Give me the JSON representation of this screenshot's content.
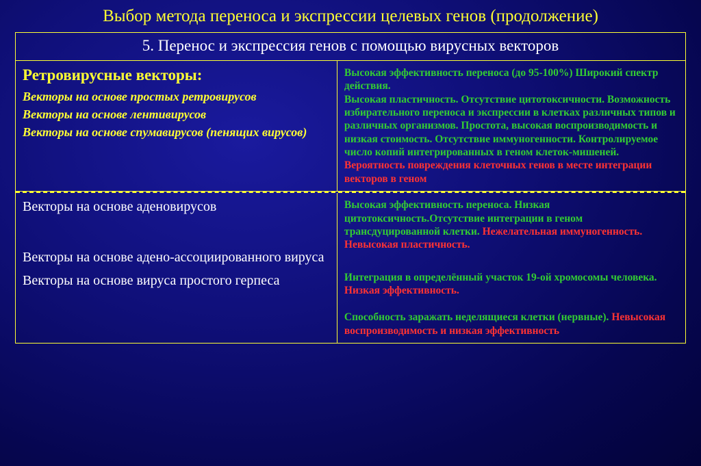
{
  "colors": {
    "accent": "#ffff33",
    "good": "#33cc33",
    "bad": "#ff3333",
    "bg_center": "#1a1a9e",
    "bg_edge": "#030338",
    "text": "#ffffff"
  },
  "title": "Выбор метода переноса и экспрессии целевых генов (продолжение)",
  "table_header": "5. Перенос и экспрессия генов с помощью вирусных векторов",
  "row1": {
    "left": {
      "heading": "Ретровирусные векторы:",
      "items": [
        "Векторы на основе простых ретровирусов",
        "Векторы на основе лентивирусов",
        "Векторы на основе спумавирусов (пенящих вирусов)"
      ]
    },
    "right": {
      "p1": "Высокая эффективность переноса (до 95-100%) Широкий спектр действия.",
      "p2": "Высокая пластичность. Отсутствие цитотоксичности. Возможность избирательного переноса и экспрессии в клетках различных типов и различных организмов. Простота, высокая воспроизводимость и низкая стоимость. Отсутствие иммуногенности. Контролируемое число копий интегрированных в геном клеток-мишеней.",
      "p3": "Вероятность повреждения клеточных генов в месте интеграции векторов в геном"
    }
  },
  "row2": {
    "left": {
      "items": [
        "Векторы на основе аденовирусов",
        "Векторы на основе адено-ассоциированного вируса",
        "Векторы на основе вируса простого герпеса"
      ]
    },
    "right": {
      "b1": {
        "g": "Высокая эффективность переноса. Низкая цитотоксичность.Отсутствие интеграции в геном трансдуцированной клетки. ",
        "r": "Нежелательная иммуногенность. Невысокая пластичность."
      },
      "b2": {
        "g": "Интеграция в определённый участок 19-ой хромосомы человека. ",
        "r": "Низкая эффективность."
      },
      "b3": {
        "g": "Способность заражать неделящиеся клетки (нервные). ",
        "r": "Невысокая воспроизводимость и низкая эффективность"
      }
    }
  }
}
